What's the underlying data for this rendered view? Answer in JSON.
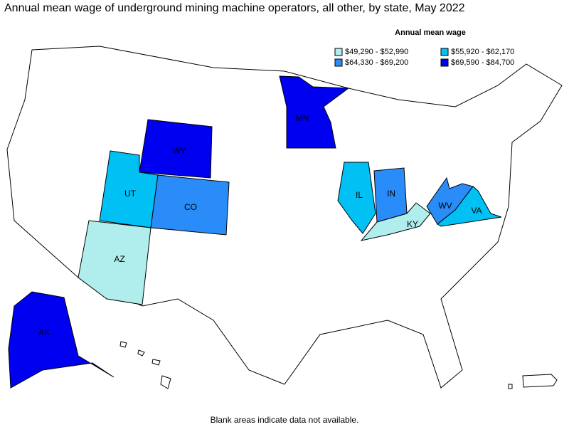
{
  "title": "Annual mean wage of underground mining machine operators, all other, by state, May 2022",
  "legend": {
    "title": "Annual mean wage",
    "items": [
      {
        "label": "$49,290 - $52,990",
        "color": "#b0eeee"
      },
      {
        "label": "$55,920 - $62,170",
        "color": "#00c0f4"
      },
      {
        "label": "$64,330 - $69,200",
        "color": "#2a8cf8"
      },
      {
        "label": "$69,590 - $84,700",
        "color": "#0000f0"
      }
    ]
  },
  "states": [
    {
      "label": "WY",
      "color": "#0000f0"
    },
    {
      "label": "MN",
      "color": "#0000f0"
    },
    {
      "label": "UT",
      "color": "#00c0f4"
    },
    {
      "label": "CO",
      "color": "#2a8cf8"
    },
    {
      "label": "AZ",
      "color": "#b0eeee"
    },
    {
      "label": "IL",
      "color": "#00c0f4"
    },
    {
      "label": "IN",
      "color": "#2a8cf8"
    },
    {
      "label": "KY",
      "color": "#b0eeee"
    },
    {
      "label": "WV",
      "color": "#2a8cf8"
    },
    {
      "label": "VA",
      "color": "#00c0f4"
    },
    {
      "label": "AK",
      "color": "#0000f0"
    }
  ],
  "footnote": "Blank areas indicate data not available."
}
